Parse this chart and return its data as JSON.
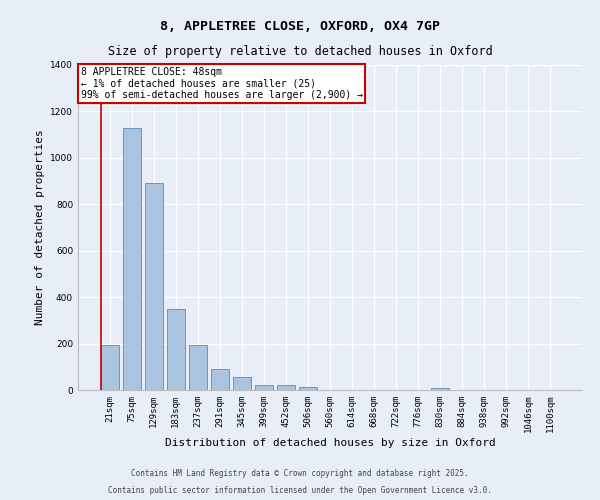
{
  "title_line1": "8, APPLETREE CLOSE, OXFORD, OX4 7GP",
  "title_line2": "Size of property relative to detached houses in Oxford",
  "xlabel": "Distribution of detached houses by size in Oxford",
  "ylabel": "Number of detached properties",
  "categories": [
    "21sqm",
    "75sqm",
    "129sqm",
    "183sqm",
    "237sqm",
    "291sqm",
    "345sqm",
    "399sqm",
    "452sqm",
    "506sqm",
    "560sqm",
    "614sqm",
    "668sqm",
    "722sqm",
    "776sqm",
    "830sqm",
    "884sqm",
    "938sqm",
    "992sqm",
    "1046sqm",
    "1100sqm"
  ],
  "values": [
    195,
    1130,
    890,
    350,
    193,
    90,
    55,
    20,
    20,
    12,
    0,
    0,
    0,
    0,
    0,
    10,
    0,
    0,
    0,
    0,
    0
  ],
  "bar_color": "#aac4e0",
  "bar_edge_color": "#5b8db8",
  "background_color": "#e8eef8",
  "grid_color": "#ffffff",
  "vline_x_index": 0,
  "vline_color": "#cc0000",
  "ylim": [
    0,
    1400
  ],
  "annotation_text": "8 APPLETREE CLOSE: 48sqm\n← 1% of detached houses are smaller (25)\n99% of semi-detached houses are larger (2,900) →",
  "annotation_box_color": "#cc0000",
  "footer_line1": "Contains HM Land Registry data © Crown copyright and database right 2025.",
  "footer_line2": "Contains public sector information licensed under the Open Government Licence v3.0.",
  "title_fontsize": 9.5,
  "subtitle_fontsize": 8.5,
  "axis_label_fontsize": 8,
  "tick_fontsize": 6.5,
  "annotation_fontsize": 7,
  "footer_fontsize": 5.5
}
